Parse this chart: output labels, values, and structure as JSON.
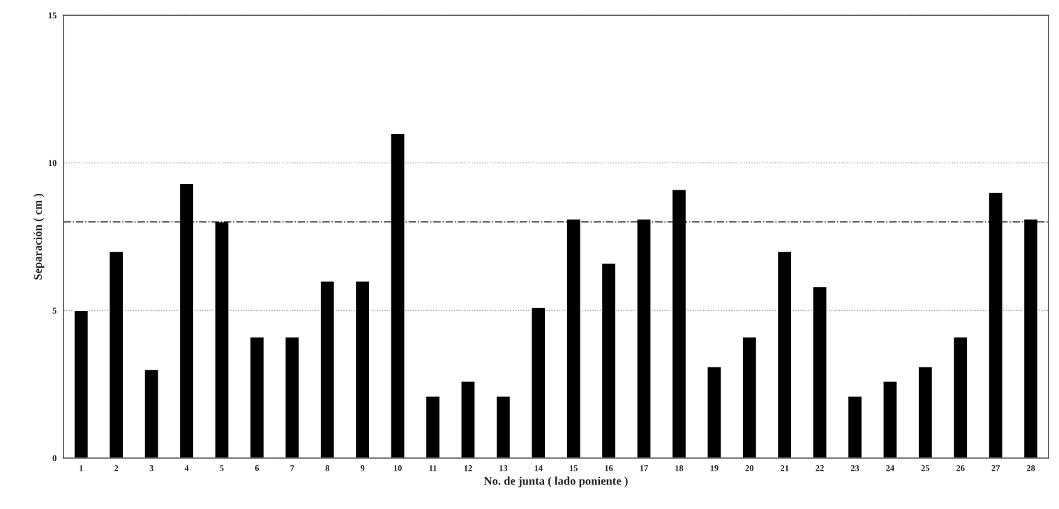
{
  "chart_data": {
    "type": "bar",
    "xlabel": "No. de junta ( lado poniente )",
    "ylabel": "Separación ( cm )",
    "categories": [
      "1",
      "2",
      "3",
      "4",
      "5",
      "6",
      "7",
      "8",
      "9",
      "10",
      "11",
      "12",
      "13",
      "14",
      "15",
      "16",
      "17",
      "18",
      "19",
      "20",
      "21",
      "22",
      "23",
      "24",
      "25",
      "26",
      "27",
      "28"
    ],
    "values": [
      5.0,
      7.0,
      3.0,
      9.3,
      8.0,
      4.1,
      4.1,
      6.0,
      6.0,
      11.0,
      2.1,
      2.6,
      2.1,
      5.1,
      8.1,
      6.6,
      8.1,
      9.1,
      3.1,
      4.1,
      7.0,
      5.8,
      2.1,
      2.6,
      3.1,
      4.1,
      9.0,
      8.1
    ],
    "color": "#000000",
    "ylim": [
      0,
      15
    ],
    "yticks": [
      0,
      5,
      10,
      15
    ],
    "grid": "y",
    "legend": false,
    "ref_lines": [
      {
        "axis": "y",
        "value": 8,
        "line_style": "dashdot",
        "color": "#000000"
      }
    ]
  }
}
